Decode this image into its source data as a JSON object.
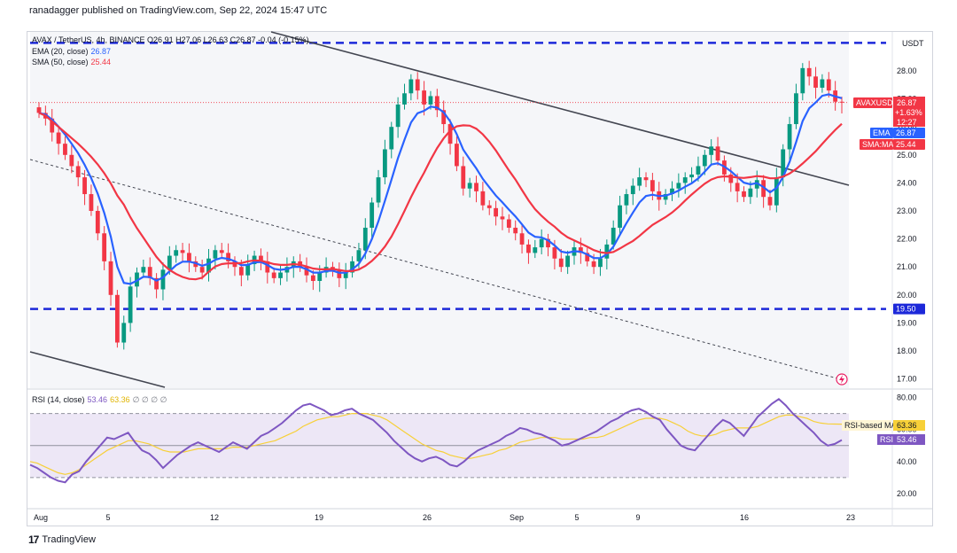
{
  "header": {
    "text": "ranadagger published on TradingView.com, Sep 22, 2024 15:47 UTC"
  },
  "footer": {
    "brand": "TradingView",
    "logo_glyph": "17"
  },
  "legend": {
    "symbol_line": "AVAX / TetherUS, 4h, BINANCE  O26.91  H27.06  L26.63  C26.87  -0.04 (-0.15%)",
    "ema_label": "EMA (20, close)",
    "ema_value": "26.87",
    "sma_label": "SMA (50, close)",
    "sma_value": "25.44",
    "rsi_label": "RSI (14, close)",
    "rsi_value": "53.46",
    "rsi_ma_value": "63.36",
    "rsi_extra": "∅ ∅ ∅ ∅"
  },
  "colors": {
    "ema": "#2962ff",
    "sma": "#f23645",
    "rsi": "#7e57c2",
    "rsi_ma": "#f7d038",
    "up": "#089981",
    "down": "#f23645",
    "level": "#1c28d9"
  },
  "price_axis": {
    "currency": "USDT",
    "ticks": [
      "28.00",
      "27.00",
      "26.00",
      "25.00",
      "24.00",
      "23.00",
      "22.00",
      "21.00",
      "20.00",
      "19.00",
      "18.00",
      "17.00"
    ],
    "labels": {
      "symbol": "AVAXUSDT",
      "price": "26.87",
      "change": "+1.63%",
      "countdown": "12:27",
      "ema_tag": "EMA",
      "ema_value": "26.87",
      "sma_tag": "SMA:MA",
      "sma_value": "25.44",
      "level_value": "19.50"
    }
  },
  "rsi_axis": {
    "ticks": [
      "80.00",
      "60.00",
      "40.00",
      "20.00"
    ],
    "labels": {
      "ma_tag": "RSI-based MA",
      "ma_value": "63.36",
      "rsi_tag": "RSI",
      "rsi_value": "53.46"
    }
  },
  "time_axis": {
    "labels": [
      "Aug",
      "5",
      "12",
      "19",
      "26",
      "Sep",
      "5",
      "9",
      "16",
      "23"
    ]
  },
  "chart_data": {
    "type": "candlestick",
    "title": "AVAX / TetherUS, 4h, BINANCE",
    "y_range": [
      16.7,
      29.2
    ],
    "levels": {
      "resistance": 29.0,
      "support": 19.5
    },
    "descending_channel": {
      "upper": {
        "from": [
          "Aug 15",
          29.3
        ],
        "to": [
          "Sep 22",
          23.9
        ]
      },
      "lower": {
        "from": [
          "Aug 1",
          18.1
        ],
        "to": [
          "Aug 12",
          16.8
        ]
      },
      "midline": {
        "from": [
          "Aug 1",
          24.8
        ],
        "to": [
          "Sep 22",
          17.1
        ]
      }
    },
    "close_series": [
      26.5,
      26.3,
      25.8,
      25.4,
      25.0,
      24.6,
      24.2,
      23.6,
      23.0,
      22.2,
      21.2,
      20.0,
      18.3,
      19.0,
      20.3,
      20.8,
      21.0,
      20.6,
      20.2,
      20.9,
      21.4,
      21.6,
      21.5,
      21.2,
      21.0,
      20.8,
      21.3,
      21.6,
      21.5,
      21.2,
      21.0,
      20.7,
      21.1,
      21.4,
      21.2,
      20.8,
      20.6,
      20.8,
      21.0,
      21.2,
      21.0,
      20.7,
      20.5,
      20.8,
      21.0,
      20.9,
      20.6,
      20.8,
      21.2,
      21.6,
      22.4,
      23.3,
      24.2,
      25.2,
      26.0,
      26.8,
      27.2,
      27.7,
      27.3,
      26.8,
      27.1,
      26.6,
      26.1,
      25.4,
      24.6,
      23.8,
      24.0,
      23.7,
      23.2,
      23.1,
      22.8,
      22.7,
      22.4,
      22.2,
      21.8,
      21.5,
      21.7,
      22.0,
      21.7,
      21.3,
      21.0,
      21.4,
      21.7,
      21.5,
      21.2,
      21.0,
      21.3,
      21.8,
      22.4,
      23.2,
      23.6,
      23.9,
      24.2,
      24.1,
      23.7,
      23.4,
      23.6,
      23.8,
      24.0,
      24.2,
      24.3,
      24.6,
      25.0,
      25.3,
      24.8,
      24.3,
      24.0,
      23.7,
      23.5,
      23.8,
      24.1,
      23.5,
      23.2,
      24.2,
      25.2,
      26.1,
      27.2,
      28.1,
      27.8,
      27.4,
      27.7,
      27.3,
      26.9,
      26.87
    ],
    "ema20": {
      "last": 26.87
    },
    "sma50": {
      "last": 25.44
    },
    "rsi14": {
      "last": 53.46,
      "ma_last": 63.36,
      "bands": [
        70,
        50,
        30
      ],
      "values": [
        38,
        36,
        33,
        30,
        28,
        27,
        32,
        34,
        40,
        45,
        50,
        55,
        54,
        56,
        58,
        52,
        47,
        45,
        41,
        36,
        40,
        44,
        47,
        50,
        52,
        50,
        48,
        46,
        49,
        52,
        50,
        48,
        52,
        56,
        58,
        61,
        64,
        68,
        72,
        75,
        76,
        74,
        72,
        69,
        70,
        72,
        73,
        70,
        68,
        66,
        62,
        58,
        53,
        49,
        45,
        42,
        40,
        42,
        43,
        41,
        38,
        37,
        40,
        44,
        47,
        49,
        51,
        53,
        56,
        58,
        61,
        60,
        58,
        57,
        55,
        53,
        50,
        51,
        53,
        55,
        57,
        59,
        62,
        65,
        67,
        70,
        72,
        73,
        71,
        68,
        66,
        60,
        55,
        50,
        48,
        47,
        52,
        57,
        62,
        66,
        64,
        60,
        56,
        62,
        68,
        72,
        76,
        79,
        75,
        70,
        66,
        62,
        58,
        53,
        50,
        51,
        53.46
      ],
      "ma_values": [
        40,
        39,
        37,
        35,
        33,
        32,
        33,
        35,
        38,
        41,
        44,
        47,
        49,
        51,
        53,
        53,
        52,
        51,
        49,
        47,
        46,
        46,
        46,
        47,
        48,
        48,
        48,
        48,
        48,
        49,
        49,
        49,
        50,
        51,
        52,
        53,
        55,
        57,
        59,
        62,
        64,
        66,
        67,
        68,
        68,
        69,
        70,
        70,
        70,
        69,
        68,
        66,
        63,
        60,
        57,
        54,
        51,
        49,
        47,
        46,
        44,
        43,
        42,
        42,
        43,
        44,
        45,
        47,
        48,
        50,
        52,
        53,
        54,
        55,
        55,
        55,
        54,
        54,
        54,
        54,
        55,
        55,
        56,
        58,
        60,
        62,
        64,
        66,
        67,
        67,
        67,
        66,
        64,
        62,
        59,
        57,
        56,
        56,
        57,
        59,
        60,
        61,
        61,
        61,
        62,
        64,
        66,
        68,
        69,
        69,
        68,
        67,
        65,
        64,
        63.5,
        63.4,
        63.36
      ]
    }
  }
}
